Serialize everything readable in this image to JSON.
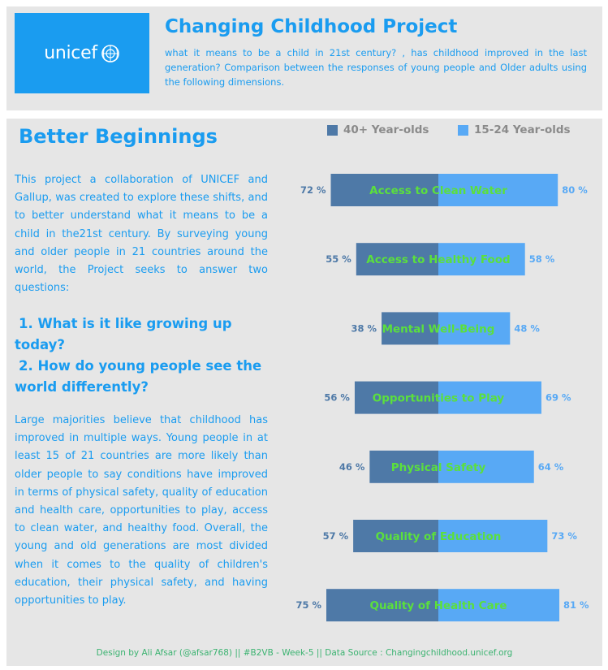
{
  "header": {
    "logo_text": "unicef",
    "title": "Changing Childhood Project",
    "subtitle": "what it means to be a child in 21st century? , has childhood improved in the last generation? Comparison between the responses of young people and Older adults using the following dimensions."
  },
  "left": {
    "section_title": "Better Beginnings",
    "intro": "This project a collaboration of UNICEF and Gallup, was created to explore these shifts, and to better understand what it means to be a child in the21st century. By surveying young and older people in 21 countries around the world, the Project seeks to answer two questions:",
    "question1": "1. What is it like growing up today?",
    "question2": "2. How do young people see the world differently?",
    "findings": "Large majorities believe that childhood has improved in multiple ways. Young people in at least 15 of 21 countries are more likely than older people to say conditions have improved in terms of physical safety, quality of education and health care, opportunities to play, access to clean water, and healthy food. Overall, the young and old generations are most divided when it comes to the quality of children's education, their physical safety, and having opportunities to play."
  },
  "footer": {
    "credit": "Design by Ali Afsar (@afsar768) || #B2VB - Week-5 || Data Source : Changingchildhood.unicef.org"
  },
  "colors": {
    "brand_blue": "#1a9cf0",
    "older": "#4e79a7",
    "younger": "#58a9f5",
    "label_green": "#5be03c"
  },
  "chart_data": {
    "type": "bar",
    "layout": "diverging",
    "categories": [
      "Access to Clean Water",
      "Access to Healthy Food",
      "Mental Well-Being",
      "Opportunities to Play",
      "Physical Safety",
      "Quality of Education",
      "Quality of Health Care"
    ],
    "series": [
      {
        "name": "40+ Year-olds",
        "values": [
          72,
          55,
          38,
          56,
          46,
          57,
          75
        ],
        "color": "#4e79a7"
      },
      {
        "name": "15-24 Year-olds",
        "values": [
          80,
          58,
          48,
          69,
          64,
          73,
          81
        ],
        "color": "#58a9f5"
      }
    ],
    "value_suffix": " %",
    "legend_position": "top",
    "grid": false
  }
}
